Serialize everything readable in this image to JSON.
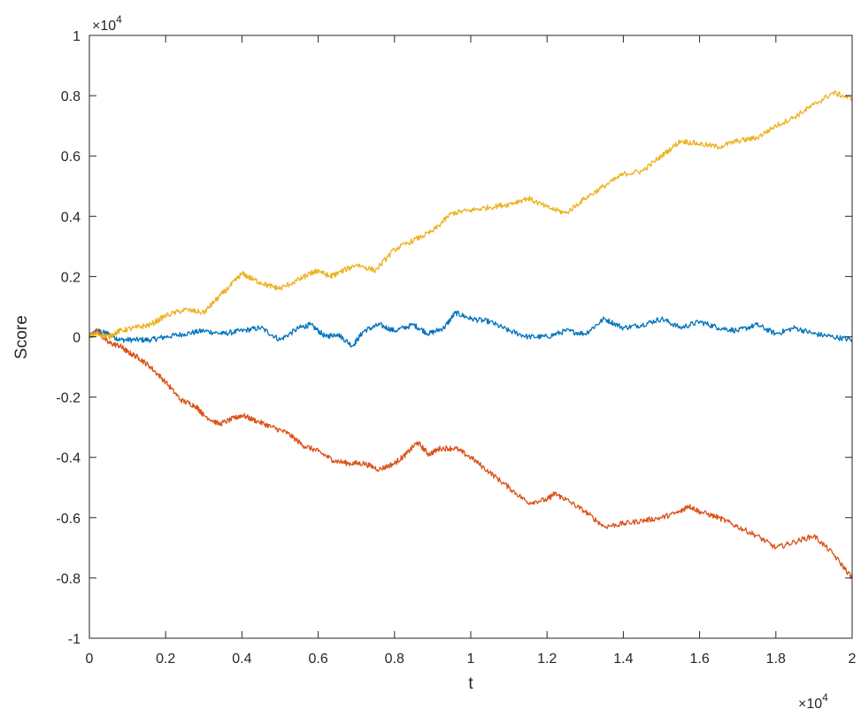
{
  "chart_data": {
    "type": "line",
    "title": "",
    "xlabel": "t",
    "ylabel": "Score",
    "xlim": [
      0,
      20000
    ],
    "ylim": [
      -10000,
      10000
    ],
    "x_multiplier": "×10",
    "x_exponent": "4",
    "y_multiplier": "×10",
    "y_exponent": "4",
    "xticks": [
      0,
      2000,
      4000,
      6000,
      8000,
      10000,
      12000,
      14000,
      16000,
      18000,
      20000
    ],
    "xtick_labels": [
      "0",
      "0.2",
      "0.4",
      "0.6",
      "0.8",
      "1",
      "1.2",
      "1.4",
      "1.6",
      "1.8",
      "2"
    ],
    "yticks": [
      -10000,
      -8000,
      -6000,
      -4000,
      -2000,
      0,
      2000,
      4000,
      6000,
      8000,
      10000
    ],
    "ytick_labels": [
      "-1",
      "-0.8",
      "-0.6",
      "-0.4",
      "-0.2",
      "0",
      "0.2",
      "0.4",
      "0.6",
      "0.8",
      "1"
    ],
    "grid": false,
    "series": [
      {
        "color": "#0072BD",
        "x": [
          0,
          200,
          500,
          800,
          1200,
          1600,
          2000,
          2500,
          3000,
          3500,
          4000,
          4500,
          5000,
          5500,
          5800,
          6200,
          6500,
          6900,
          7200,
          7600,
          8000,
          8500,
          8900,
          9300,
          9600,
          10000,
          10500,
          11000,
          11500,
          12000,
          12500,
          13000,
          13500,
          14000,
          14500,
          15000,
          15500,
          16000,
          16500,
          17000,
          17500,
          18000,
          18500,
          19000,
          19500,
          20000
        ],
        "y": [
          0,
          200,
          100,
          -100,
          -100,
          -100,
          0,
          100,
          200,
          100,
          200,
          300,
          -100,
          300,
          400,
          0,
          100,
          -300,
          200,
          400,
          200,
          400,
          100,
          300,
          800,
          600,
          500,
          200,
          0,
          0,
          200,
          100,
          600,
          300,
          400,
          600,
          300,
          500,
          300,
          200,
          400,
          100,
          300,
          100,
          0,
          -100
        ]
      },
      {
        "color": "#D95319",
        "x": [
          0,
          200,
          500,
          800,
          1000,
          1300,
          1600,
          2000,
          2400,
          2800,
          3000,
          3400,
          3800,
          4000,
          4400,
          4800,
          5200,
          5600,
          6000,
          6400,
          6800,
          7200,
          7600,
          8000,
          8300,
          8600,
          8900,
          9200,
          9600,
          10000,
          10500,
          11000,
          11500,
          12000,
          12200,
          12500,
          13000,
          13500,
          14000,
          14500,
          15000,
          15500,
          15700,
          16000,
          16500,
          17000,
          17500,
          18000,
          18500,
          19000,
          19500,
          20000
        ],
        "y": [
          0,
          200,
          -200,
          -300,
          -500,
          -700,
          -1000,
          -1500,
          -2100,
          -2300,
          -2600,
          -2900,
          -2700,
          -2600,
          -2800,
          -3000,
          -3200,
          -3600,
          -3800,
          -4100,
          -4200,
          -4200,
          -4400,
          -4200,
          -3900,
          -3500,
          -3900,
          -3700,
          -3700,
          -4000,
          -4500,
          -5000,
          -5500,
          -5400,
          -5200,
          -5400,
          -5800,
          -6300,
          -6200,
          -6100,
          -6000,
          -5800,
          -5600,
          -5800,
          -6000,
          -6300,
          -6600,
          -7000,
          -6800,
          -6600,
          -7200,
          -8000
        ]
      },
      {
        "color": "#EDB120",
        "x": [
          0,
          200,
          500,
          800,
          1200,
          1600,
          2000,
          2500,
          3000,
          3300,
          3700,
          4000,
          4300,
          4700,
          5000,
          5500,
          5800,
          6000,
          6300,
          6500,
          7000,
          7500,
          8000,
          8500,
          9000,
          9500,
          10000,
          10500,
          11000,
          11500,
          12000,
          12500,
          13000,
          13500,
          14000,
          14500,
          15000,
          15500,
          16000,
          16500,
          17000,
          17500,
          18000,
          18500,
          19000,
          19500,
          20000
        ],
        "y": [
          0,
          100,
          0,
          200,
          300,
          400,
          700,
          900,
          800,
          1200,
          1700,
          2100,
          1900,
          1700,
          1600,
          1900,
          2100,
          2200,
          2000,
          2100,
          2400,
          2200,
          2900,
          3200,
          3500,
          4100,
          4200,
          4300,
          4400,
          4600,
          4300,
          4100,
          4600,
          5000,
          5400,
          5500,
          6000,
          6500,
          6400,
          6300,
          6500,
          6600,
          7000,
          7300,
          7700,
          8100,
          7900
        ]
      }
    ]
  }
}
